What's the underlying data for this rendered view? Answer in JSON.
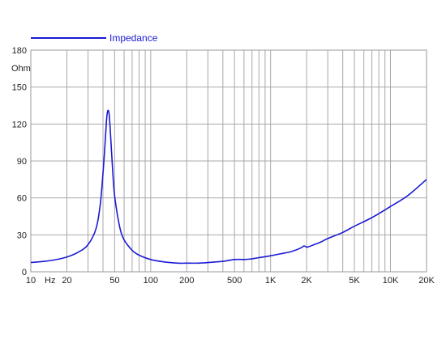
{
  "chart_data": {
    "type": "line",
    "title": "",
    "xlabel": "",
    "ylabel": "",
    "x_scale": "log",
    "xlim": [
      10,
      20000
    ],
    "ylim": [
      0,
      180
    ],
    "grid": true,
    "legend": "top-left",
    "y_unit": "Ohm",
    "x_unit": "Hz",
    "x_ticks": [
      {
        "value": 10,
        "label": "10"
      },
      {
        "value": 20,
        "label": "20"
      },
      {
        "value": 50,
        "label": "50"
      },
      {
        "value": 100,
        "label": "100"
      },
      {
        "value": 200,
        "label": "200"
      },
      {
        "value": 500,
        "label": "500"
      },
      {
        "value": 1000,
        "label": "1K"
      },
      {
        "value": 2000,
        "label": "2K"
      },
      {
        "value": 5000,
        "label": "5K"
      },
      {
        "value": 10000,
        "label": "10K"
      },
      {
        "value": 20000,
        "label": "20K"
      }
    ],
    "y_ticks": [
      {
        "value": 0,
        "label": "0"
      },
      {
        "value": 30,
        "label": "30"
      },
      {
        "value": 60,
        "label": "60"
      },
      {
        "value": 90,
        "label": "90"
      },
      {
        "value": 120,
        "label": "120"
      },
      {
        "value": 150,
        "label": "150"
      },
      {
        "value": 180,
        "label": "180"
      }
    ],
    "series": [
      {
        "name": "Impedance",
        "color": "#1a1ad6",
        "x": [
          10,
          13,
          16,
          20,
          25,
          30,
          35,
          38,
          40,
          42,
          43,
          44,
          45,
          46,
          48,
          50,
          55,
          60,
          70,
          80,
          100,
          130,
          170,
          200,
          250,
          300,
          400,
          500,
          600,
          700,
          800,
          1000,
          1200,
          1500,
          1800,
          1900,
          2000,
          2100,
          2300,
          2600,
          3000,
          4000,
          5000,
          7000,
          10000,
          14000,
          20000
        ],
        "y": [
          7.5,
          8.5,
          9.8,
          12,
          16,
          22,
          35,
          55,
          80,
          110,
          125,
          131,
          128,
          115,
          85,
          62,
          37,
          26,
          17.5,
          13.5,
          10,
          8,
          7,
          7,
          7,
          7.5,
          8.5,
          10,
          10,
          10.5,
          11.5,
          13,
          14.5,
          16.5,
          19.5,
          21,
          20,
          20.5,
          22,
          24,
          27,
          32,
          37,
          44,
          53,
          62,
          75
        ]
      }
    ]
  }
}
